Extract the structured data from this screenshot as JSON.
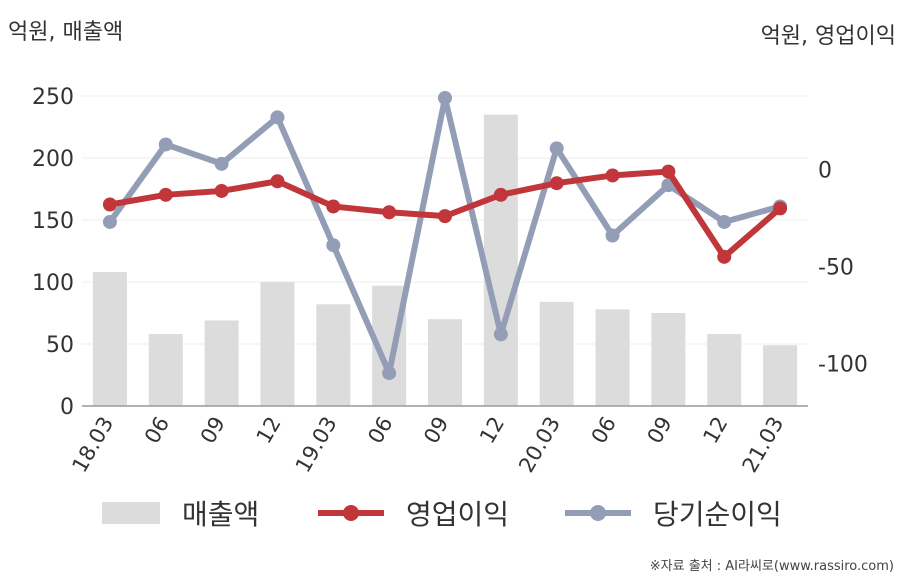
{
  "units": {
    "left": "억원, 매출액",
    "right": "억원, 영업이익"
  },
  "source": "※자료 출처 : AI라씨로(www.rassiro.com)",
  "colors": {
    "revenue": "#dcdcdc",
    "operating_profit": "#c0363a",
    "net_income": "#939db5"
  },
  "chart_data": {
    "type": "bar",
    "categories": [
      "18.03",
      "06",
      "09",
      "12",
      "19.03",
      "06",
      "09",
      "12",
      "20.03",
      "06",
      "09",
      "12",
      "21.03"
    ],
    "left_axis": {
      "ylim": [
        0,
        250
      ],
      "ticks": [
        0,
        50,
        100,
        150,
        200,
        250
      ]
    },
    "right_axis": {
      "ylim": [
        -122,
        38
      ],
      "ticks": [
        0,
        -50,
        -100
      ],
      "tick_labels": [
        "0",
        "-50",
        "-100"
      ]
    },
    "series": [
      {
        "name": "매출액",
        "type": "bar",
        "axis": "left",
        "values": [
          108,
          58,
          69,
          100,
          82,
          97,
          70,
          235,
          84,
          78,
          75,
          58,
          49
        ]
      },
      {
        "name": "영업이익",
        "type": "line",
        "axis": "right",
        "values": [
          -18,
          -13,
          -11,
          -6,
          -19,
          -22,
          -24,
          -13,
          -7,
          -3,
          -1,
          -45,
          -20
        ]
      },
      {
        "name": "당기순이익",
        "type": "line",
        "axis": "right",
        "values": [
          -27,
          13,
          3,
          27,
          -39,
          -105,
          37,
          -85,
          11,
          -34,
          -8,
          -27,
          -19
        ]
      }
    ],
    "legend_position": "bottom",
    "grid": true
  }
}
